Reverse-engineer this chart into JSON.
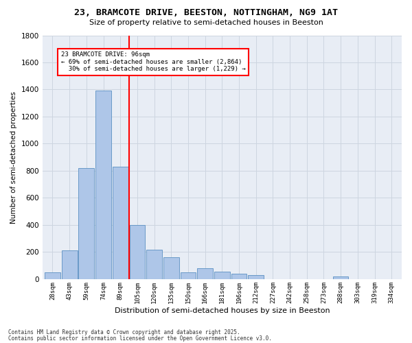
{
  "title": "23, BRAMCOTE DRIVE, BEESTON, NOTTINGHAM, NG9 1AT",
  "subtitle": "Size of property relative to semi-detached houses in Beeston",
  "xlabel": "Distribution of semi-detached houses by size in Beeston",
  "ylabel": "Number of semi-detached properties",
  "categories": [
    "28sqm",
    "43sqm",
    "59sqm",
    "74sqm",
    "89sqm",
    "105sqm",
    "120sqm",
    "135sqm",
    "150sqm",
    "166sqm",
    "181sqm",
    "196sqm",
    "212sqm",
    "227sqm",
    "242sqm",
    "258sqm",
    "273sqm",
    "288sqm",
    "303sqm",
    "319sqm",
    "334sqm"
  ],
  "values": [
    50,
    210,
    820,
    1390,
    830,
    400,
    215,
    160,
    50,
    80,
    55,
    40,
    30,
    0,
    0,
    0,
    0,
    20,
    0,
    0,
    0
  ],
  "bar_color": "#aec6e8",
  "bar_edge_color": "#5a8fc2",
  "vline_x": 4.5,
  "vline_color": "red",
  "property_label": "23 BRAMCOTE DRIVE: 96sqm",
  "smaller_pct": 69,
  "smaller_count": 2864,
  "larger_pct": 30,
  "larger_count": 1229,
  "ylim": [
    0,
    1800
  ],
  "yticks": [
    0,
    200,
    400,
    600,
    800,
    1000,
    1200,
    1400,
    1600,
    1800
  ],
  "grid_color": "#cdd5e0",
  "bg_color": "#e8edf5",
  "fig_bg_color": "#ffffff",
  "footnote1": "Contains HM Land Registry data © Crown copyright and database right 2025.",
  "footnote2": "Contains public sector information licensed under the Open Government Licence v3.0."
}
